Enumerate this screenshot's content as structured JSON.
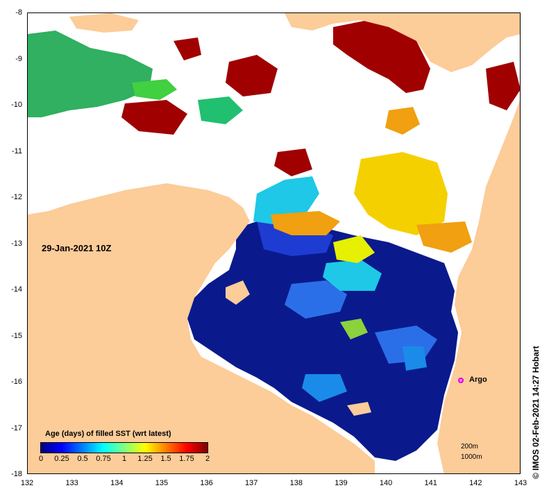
{
  "map": {
    "lon_range": [
      132,
      143
    ],
    "lat_range": [
      -18,
      -8
    ],
    "x_ticks": [
      "132",
      "133",
      "134",
      "135",
      "136",
      "137",
      "138",
      "139",
      "140",
      "141",
      "142",
      "143"
    ],
    "y_ticks": [
      "-8",
      "-9",
      "-10",
      "-11",
      "-12",
      "-13",
      "-14",
      "-15",
      "-16",
      "-17",
      "-18"
    ],
    "colors": {
      "land": "#fccc99",
      "no_data": "#ffffff",
      "old_data": "#a00000"
    }
  },
  "date_label": "29-Jan-2021 10Z",
  "legend": {
    "title": "Age (days) of filled SST (wrt latest)",
    "ticks": [
      "0",
      "0.25",
      "0.5",
      "0.75",
      "1",
      "1.25",
      "1.5",
      "1.75",
      "2"
    ],
    "colors": [
      "#00007f",
      "#0000ff",
      "#007fff",
      "#00ffff",
      "#7fff7f",
      "#ffff00",
      "#ff7f00",
      "#ff0000",
      "#7f0000"
    ]
  },
  "argo": {
    "label": "Argo",
    "lon": 141.7,
    "lat": -16.0,
    "color": "#ff00ff"
  },
  "scale": {
    "line1": "200m",
    "line2": "1000m"
  },
  "credit": "© IMOS 02-Feb-2021 14:27 Hobart"
}
